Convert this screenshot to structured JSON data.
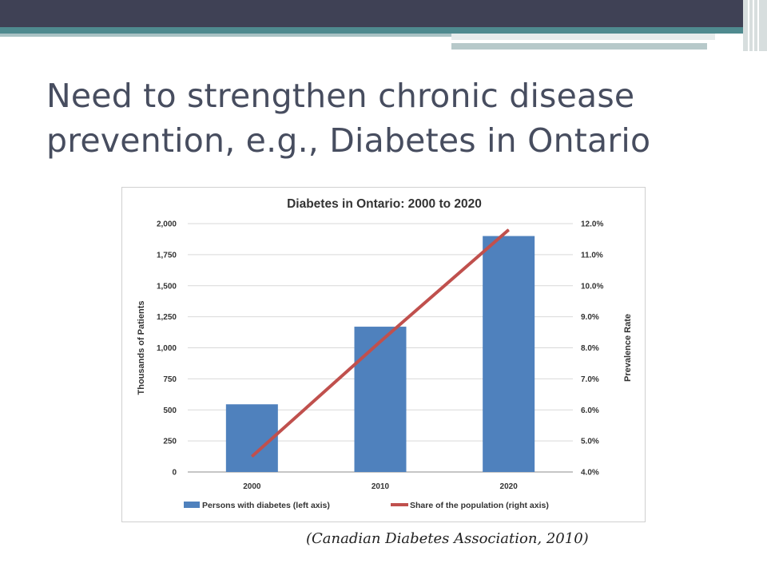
{
  "slide": {
    "title_line1": "Need to strengthen chronic disease",
    "title_line2": "prevention, e.g., Diabetes in Ontario",
    "citation": "(Canadian Diabetes Association, 2010)"
  },
  "colors": {
    "bar": "#4f81bd",
    "line": "#c0504d",
    "title_text": "#474d5f",
    "top_bar": "#3f4155",
    "teal": "#4f8a8f"
  },
  "chart_data": {
    "type": "bar",
    "title": "Diabetes in Ontario: 2000 to 2020",
    "categories": [
      "2000",
      "2010",
      "2020"
    ],
    "series": [
      {
        "name": "Persons with diabetes (left axis)",
        "type": "bar",
        "axis": "left",
        "values": [
          545,
          1170,
          1900
        ]
      },
      {
        "name": "Share of the population (right axis)",
        "type": "line",
        "axis": "right",
        "values": [
          4.5,
          8.2,
          11.8
        ]
      }
    ],
    "ylabel": "Thousands of Patients",
    "ylabel_right": "Prevalence Rate",
    "ylim": [
      0,
      2000
    ],
    "ylim_right": [
      4.0,
      12.0
    ],
    "yticks": [
      "0",
      "250",
      "500",
      "750",
      "1,000",
      "1,250",
      "1,500",
      "1,750",
      "2,000"
    ],
    "yticks_right": [
      "4.0%",
      "5.0%",
      "6.0%",
      "7.0%",
      "8.0%",
      "9.0%",
      "10.0%",
      "11.0%",
      "12.0%"
    ],
    "grid": true,
    "legend_position": "bottom"
  }
}
